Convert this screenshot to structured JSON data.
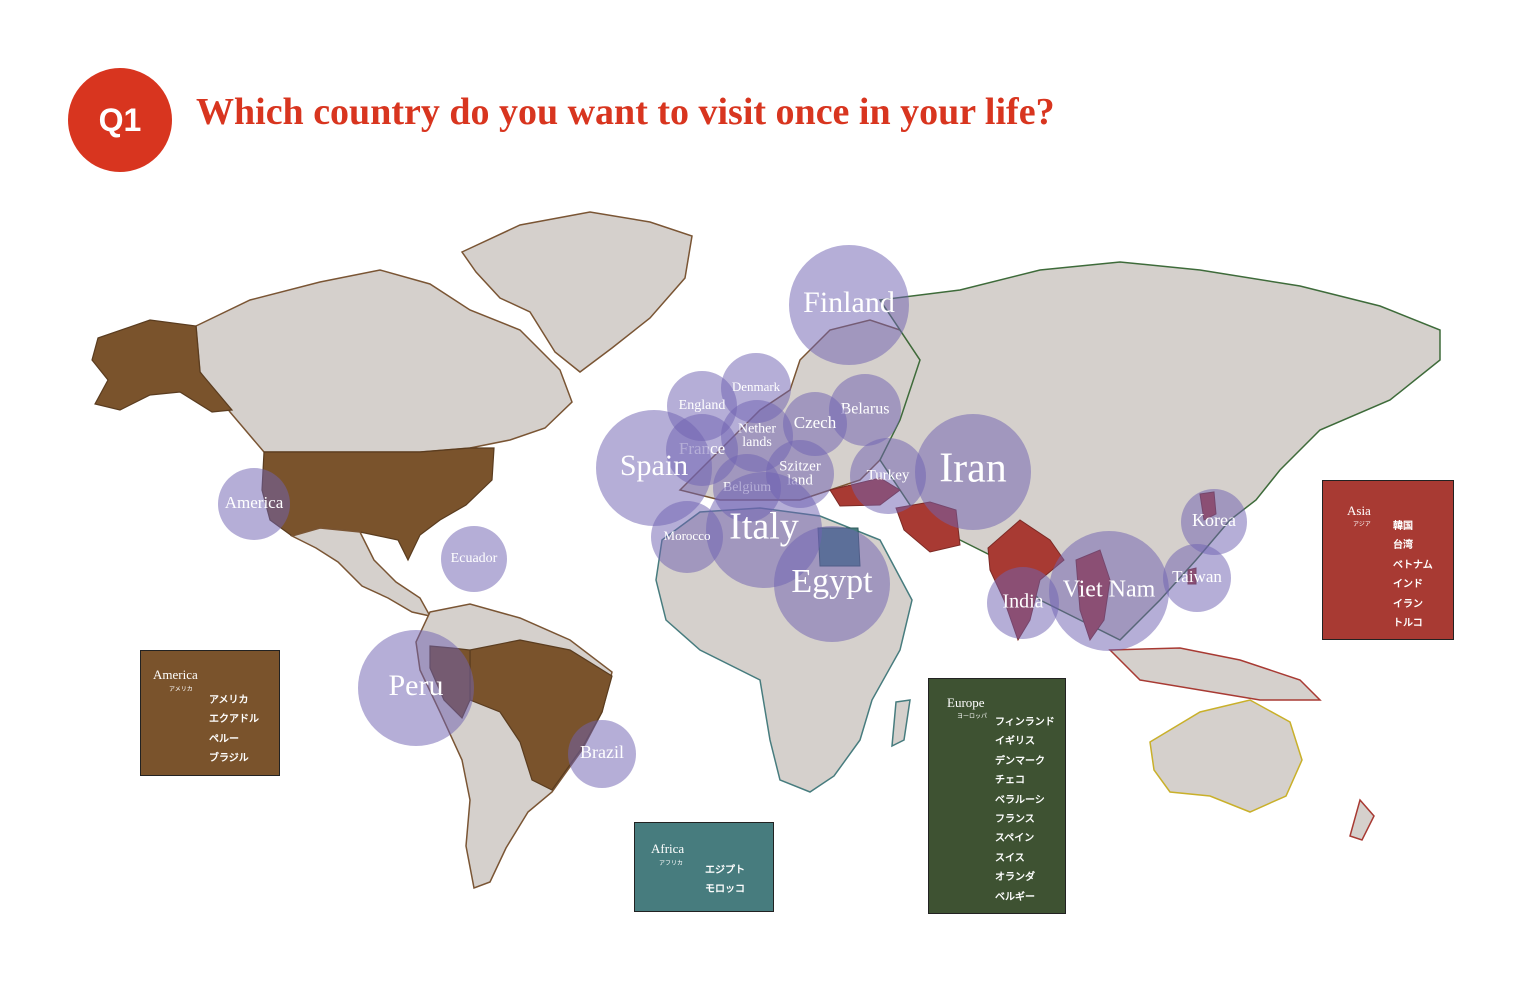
{
  "header": {
    "badge": "Q1",
    "title": "Which country do you want to visit once in your life?"
  },
  "colors": {
    "title": "#d8351f",
    "bubble": "#7062b2",
    "land": "#d5d0cc",
    "america": "#7a532c",
    "africa": "#477c7e",
    "europe": "#3e5232",
    "asia": "#a83a33",
    "border_australia": "#c9b02a"
  },
  "bubbles": [
    {
      "name": "Finland"
    },
    {
      "name": "Denmark"
    },
    {
      "name": "England"
    },
    {
      "name": "Belarus"
    },
    {
      "name": "Czech"
    },
    {
      "name": "Nether lands"
    },
    {
      "name": "France"
    },
    {
      "name": "Spain"
    },
    {
      "name": "Szitzer land"
    },
    {
      "name": "Belgium"
    },
    {
      "name": "Turkey"
    },
    {
      "name": "Iran"
    },
    {
      "name": "Italy"
    },
    {
      "name": "Morocco"
    },
    {
      "name": "Egypt"
    },
    {
      "name": "Korea"
    },
    {
      "name": "Taiwan"
    },
    {
      "name": "Viet Nam"
    },
    {
      "name": "India"
    },
    {
      "name": "America"
    },
    {
      "name": "Ecuador"
    },
    {
      "name": "Peru"
    },
    {
      "name": "Brazil"
    }
  ],
  "legends": {
    "america": {
      "title": "America",
      "sub": "アメリカ",
      "items": [
        "アメリカ",
        "エクアドル",
        "ペルー",
        "ブラジル"
      ]
    },
    "africa": {
      "title": "Africa",
      "sub": "アフリカ",
      "items": [
        "エジプト",
        "モロッコ"
      ]
    },
    "europe": {
      "title": "Europe",
      "sub": "ヨーロッパ",
      "items": [
        "フィンランド",
        "イギリス",
        "デンマーク",
        "チェコ",
        "ベラルーシ",
        "フランス",
        "スペイン",
        "スイス",
        "オランダ",
        "ベルギー"
      ]
    },
    "asia": {
      "title": "Asia",
      "sub": "アジア",
      "items": [
        "韓国",
        "台湾",
        "ベトナム",
        "インド",
        "イラン",
        "トルコ"
      ]
    }
  }
}
